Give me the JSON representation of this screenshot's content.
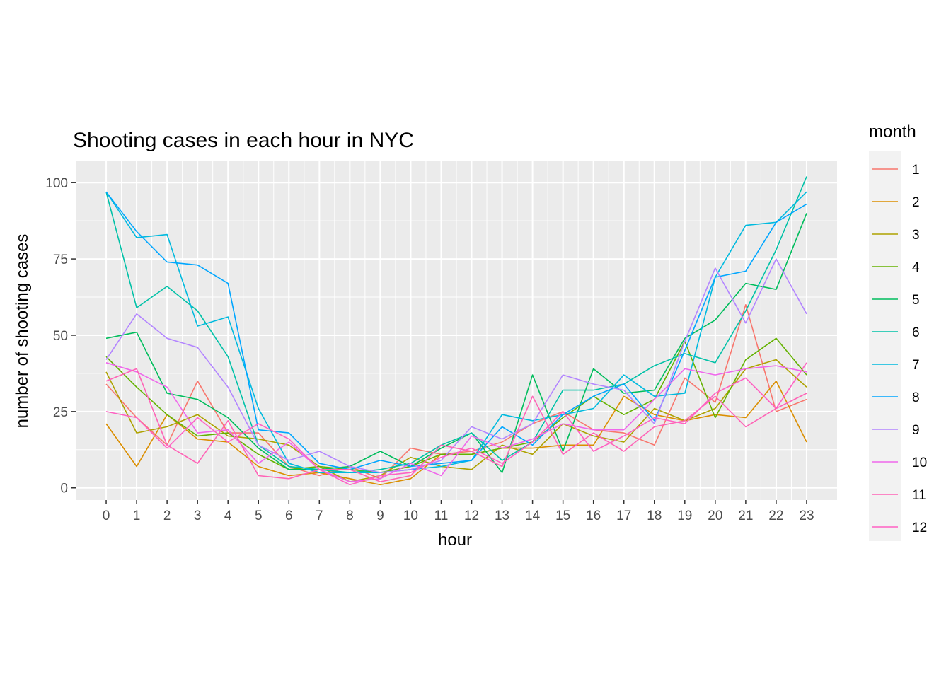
{
  "chart_data": {
    "type": "line",
    "title": "Shooting cases in each hour in NYC",
    "xlabel": "hour",
    "ylabel": "number of shooting cases",
    "x": [
      0,
      1,
      2,
      3,
      4,
      5,
      6,
      7,
      8,
      9,
      10,
      11,
      12,
      13,
      14,
      15,
      16,
      17,
      18,
      19,
      20,
      21,
      22,
      23
    ],
    "x_tick_labels": [
      "0",
      "1",
      "2",
      "3",
      "4",
      "5",
      "6",
      "7",
      "8",
      "9",
      "10",
      "11",
      "12",
      "13",
      "14",
      "15",
      "16",
      "17",
      "18",
      "19",
      "20",
      "21",
      "22",
      "23"
    ],
    "y_ticks": [
      0,
      25,
      50,
      75,
      100
    ],
    "y_tick_labels": [
      "0",
      "25",
      "50",
      "75",
      "100"
    ],
    "xlim": [
      -1,
      24
    ],
    "ylim": [
      -4,
      107
    ],
    "grid": true,
    "legend": {
      "title": "month",
      "position": "right"
    },
    "series": [
      {
        "name": "1",
        "color": "#F8766D",
        "values": [
          34,
          23,
          14,
          35,
          18,
          18,
          7,
          4,
          7,
          3,
          13,
          11,
          12,
          15,
          21,
          25,
          19,
          18,
          14,
          36,
          28,
          60,
          25,
          29
        ]
      },
      {
        "name": "2",
        "color": "#DB8E00",
        "values": [
          21,
          7,
          24,
          16,
          15,
          7,
          4,
          5,
          3,
          1,
          3,
          11,
          11,
          13,
          13,
          14,
          14,
          30,
          24,
          22,
          24,
          23,
          35,
          15
        ]
      },
      {
        "name": "3",
        "color": "#AEA200",
        "values": [
          38,
          18,
          20,
          24,
          17,
          16,
          14,
          7,
          2,
          4,
          10,
          7,
          6,
          14,
          11,
          21,
          17,
          15,
          26,
          22,
          26,
          39,
          42,
          33
        ]
      },
      {
        "name": "4",
        "color": "#64B200",
        "values": [
          43,
          33,
          24,
          17,
          18,
          11,
          6,
          7,
          6,
          5,
          7,
          11,
          11,
          13,
          15,
          23,
          30,
          24,
          29,
          48,
          23,
          42,
          49,
          37
        ]
      },
      {
        "name": "5",
        "color": "#00BD5C",
        "values": [
          49,
          51,
          31,
          29,
          23,
          13,
          6,
          6,
          7,
          12,
          7,
          13,
          18,
          5,
          37,
          12,
          39,
          31,
          32,
          49,
          55,
          67,
          65,
          90
        ]
      },
      {
        "name": "6",
        "color": "#00C1A7",
        "values": [
          97,
          59,
          66,
          58,
          43,
          14,
          7,
          6,
          5,
          6,
          8,
          14,
          18,
          9,
          15,
          32,
          32,
          34,
          40,
          44,
          41,
          58,
          78,
          102
        ]
      },
      {
        "name": "7",
        "color": "#00BADE",
        "values": [
          97,
          82,
          83,
          53,
          56,
          26,
          8,
          5,
          5,
          5,
          6,
          7,
          9,
          24,
          22,
          24,
          26,
          37,
          30,
          31,
          69,
          86,
          87,
          97
        ]
      },
      {
        "name": "8",
        "color": "#00A6FF",
        "values": [
          97,
          84,
          74,
          73,
          67,
          19,
          18,
          8,
          6,
          9,
          7,
          8,
          9,
          20,
          14,
          24,
          30,
          34,
          22,
          45,
          69,
          71,
          87,
          93
        ]
      },
      {
        "name": "9",
        "color": "#B385FF",
        "values": [
          42,
          57,
          49,
          46,
          33,
          14,
          9,
          12,
          7,
          5,
          6,
          9,
          20,
          16,
          21,
          37,
          34,
          32,
          21,
          48,
          72,
          54,
          75,
          57
        ]
      },
      {
        "name": "10",
        "color": "#EF67EB",
        "values": [
          41,
          38,
          33,
          18,
          19,
          8,
          15,
          6,
          2,
          3,
          8,
          4,
          17,
          13,
          16,
          21,
          19,
          19,
          29,
          39,
          37,
          39,
          40,
          38
        ]
      },
      {
        "name": "11",
        "color": "#FF63B6",
        "values": [
          35,
          39,
          14,
          8,
          22,
          4,
          3,
          6,
          6,
          2,
          4,
          14,
          12,
          7,
          30,
          11,
          18,
          12,
          20,
          22,
          30,
          20,
          26,
          31
        ]
      },
      {
        "name": "12",
        "color": "#FF61C3",
        "values": [
          25,
          23,
          13,
          23,
          15,
          21,
          16,
          6,
          1,
          4,
          5,
          10,
          13,
          8,
          15,
          25,
          12,
          17,
          23,
          21,
          31,
          36,
          26,
          41
        ]
      }
    ]
  }
}
